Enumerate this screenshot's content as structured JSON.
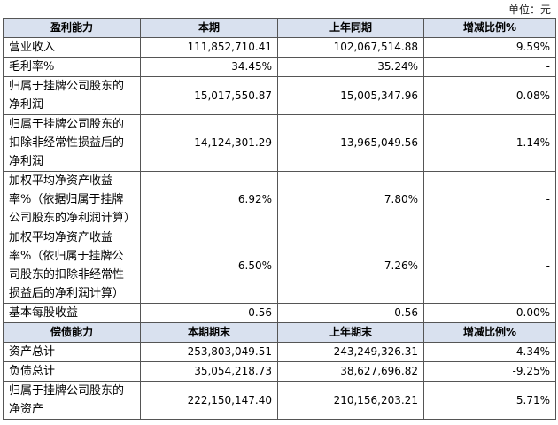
{
  "unit_note": "单位：元",
  "profit": {
    "headers": [
      "盈利能力",
      "本期",
      "上年同期",
      "增减比例%"
    ],
    "rows": [
      {
        "label": "营业收入",
        "current": "111,852,710.41",
        "prior": "102,067,514.88",
        "change": "9.59%"
      },
      {
        "label": "毛利率%",
        "current": "34.45%",
        "prior": "35.24%",
        "change": "-"
      },
      {
        "label": "归属于挂牌公司股东的净利润",
        "current": "15,017,550.87",
        "prior": "15,005,347.96",
        "change": "0.08%"
      },
      {
        "label": "归属于挂牌公司股东的扣除非经常性损益后的净利润",
        "current": "14,124,301.29",
        "prior": "13,965,049.56",
        "change": "1.14%"
      },
      {
        "label": "加权平均净资产收益率%（依据归属于挂牌公司股东的净利润计算）",
        "current": "6.92%",
        "prior": "7.80%",
        "change": "-"
      },
      {
        "label": "加权平均净资产收益率%（依归属于挂牌公司股东的扣除非经常性损益后的净利润计算）",
        "current": "6.50%",
        "prior": "7.26%",
        "change": "-"
      },
      {
        "label": "基本每股收益",
        "current": "0.56",
        "prior": "0.56",
        "change": "0.00%"
      }
    ]
  },
  "solvency": {
    "headers": [
      "偿债能力",
      "本期期末",
      "上年期末",
      "增减比例%"
    ],
    "rows": [
      {
        "label": "资产总计",
        "current": "253,803,049.51",
        "prior": "243,249,326.31",
        "change": "4.34%"
      },
      {
        "label": "负债总计",
        "current": "35,054,218.73",
        "prior": "38,627,696.82",
        "change": "-9.25%"
      },
      {
        "label": "归属于挂牌公司股东的净资产",
        "current": "222,150,147.40",
        "prior": "210,156,203.21",
        "change": "5.71%"
      }
    ]
  }
}
